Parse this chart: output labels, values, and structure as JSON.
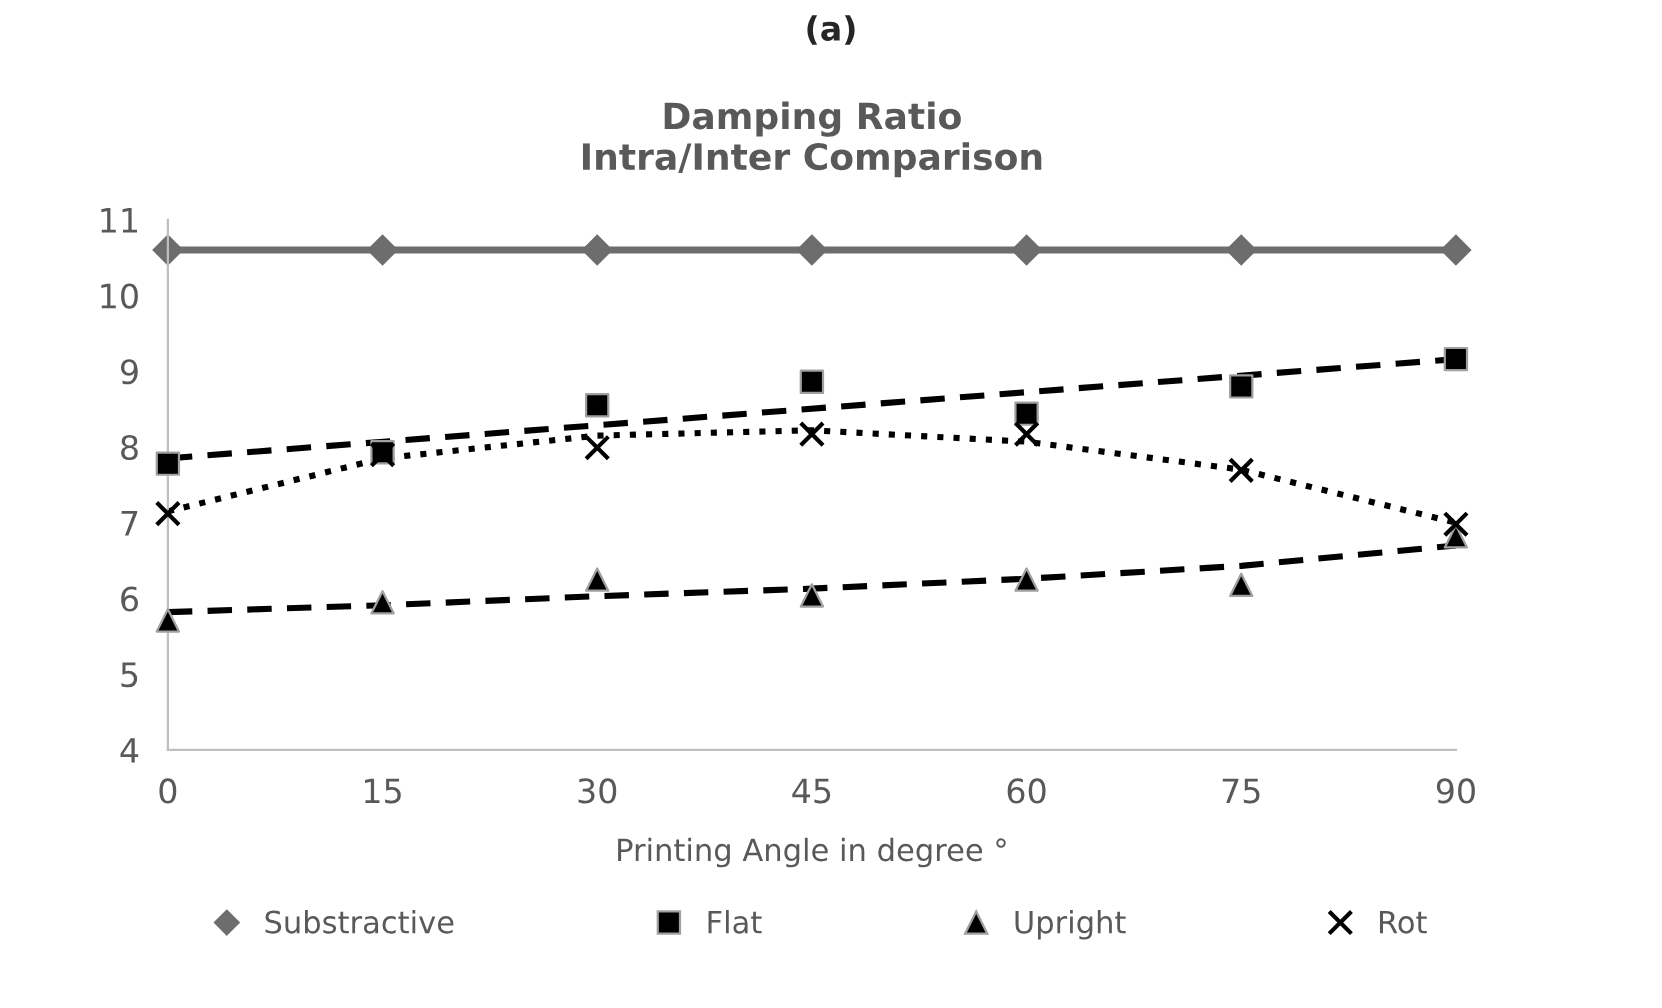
{
  "chart_data": {
    "type": "scatter",
    "title": "Damping Ratio\nIntra/Inter Comparison",
    "xlabel": "Printing Angle in degree °",
    "annotations": [
      "(a)"
    ],
    "x": [
      0,
      15,
      30,
      45,
      60,
      75,
      90
    ],
    "xlim": [
      0,
      90
    ],
    "xticks": [
      0,
      15,
      30,
      45,
      60,
      75,
      90
    ],
    "ylim": [
      4,
      11
    ],
    "yticks": [
      4,
      5,
      6,
      7,
      8,
      9,
      10,
      11
    ],
    "grid": false,
    "legend": "bottom",
    "series": [
      {
        "name": "Substractive",
        "type": "line",
        "marker": "diamond",
        "line_style": "solid",
        "color": "#6d6d6d",
        "values": [
          10.6,
          10.6,
          10.6,
          10.6,
          10.6,
          10.6,
          10.6
        ]
      },
      {
        "name": "Flat",
        "marker": "square",
        "color": "#000000",
        "values": [
          7.78,
          7.93,
          8.55,
          8.86,
          8.44,
          8.8,
          9.16
        ]
      },
      {
        "name": "Upright",
        "marker": "triangle",
        "color": "#000000",
        "values": [
          5.71,
          5.95,
          6.25,
          6.04,
          6.25,
          6.18,
          6.82
        ]
      },
      {
        "name": "Rot",
        "marker": "cross",
        "color": "#000000",
        "values": [
          7.12,
          7.9,
          7.99,
          8.17,
          8.17,
          7.69,
          6.98
        ]
      },
      {
        "type": "line",
        "marker": "none",
        "line_style": "dashed",
        "color": "#000000",
        "x": [
          0,
          90
        ],
        "values": [
          7.85,
          9.16
        ]
      },
      {
        "type": "line",
        "marker": "none",
        "line_style": "dashed",
        "color": "#000000",
        "x": [
          0,
          15,
          30,
          45,
          60,
          75,
          90
        ],
        "values": [
          5.82,
          5.91,
          6.03,
          6.13,
          6.26,
          6.43,
          6.7
        ]
      },
      {
        "type": "line",
        "marker": "none",
        "line_style": "dotted",
        "color": "#000000",
        "x": [
          0,
          15,
          30,
          45,
          60,
          75,
          90
        ],
        "values": [
          7.15,
          7.85,
          8.15,
          8.22,
          8.07,
          7.7,
          7.0
        ]
      }
    ]
  }
}
